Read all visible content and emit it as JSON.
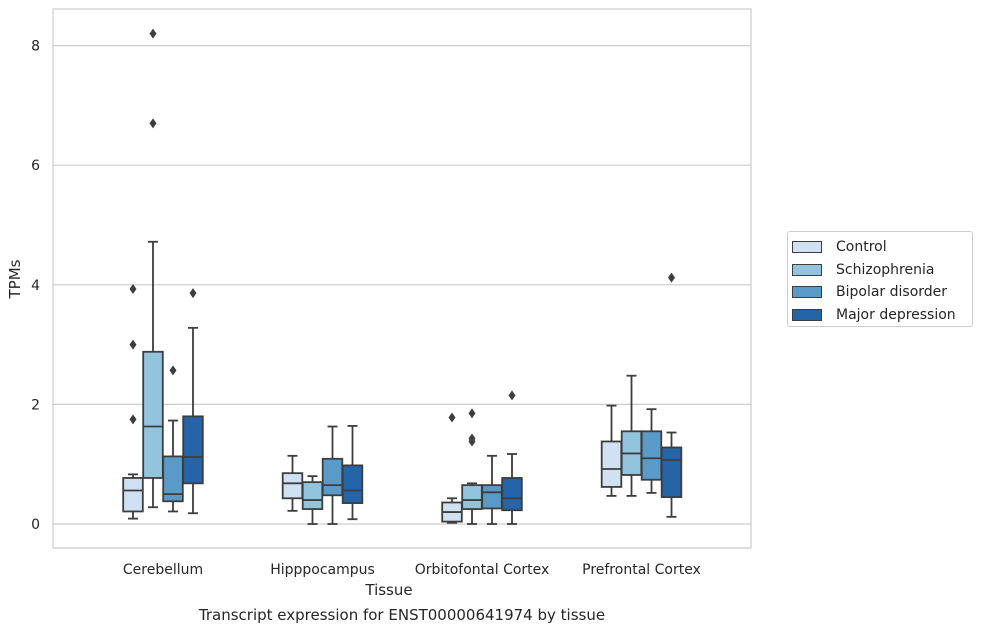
{
  "chart_data": {
    "type": "box",
    "title": "",
    "xlabel": "Tissue",
    "ylabel": "TPMs",
    "caption": "Transcript expression for ENST00000641974 by tissue",
    "ylim": [
      -0.4,
      8.6
    ],
    "yticks": [
      0,
      2,
      4,
      6,
      8
    ],
    "grid": "horizontal",
    "legend_position": "right",
    "categories": [
      "Cerebellum",
      "Hipppocampus",
      "Orbitofontal Cortex",
      "Prefrontal Cortex"
    ],
    "series": [
      {
        "name": "Control",
        "color": "#cfe1f2",
        "boxes": [
          {
            "whislo": 0.09,
            "q1": 0.21,
            "med": 0.56,
            "q3": 0.77,
            "whishi": 0.83,
            "fliers": [
              1.75,
              3.0,
              3.93
            ]
          },
          {
            "whislo": 0.22,
            "q1": 0.43,
            "med": 0.68,
            "q3": 0.85,
            "whishi": 1.14,
            "fliers": []
          },
          {
            "whislo": 0.02,
            "q1": 0.04,
            "med": 0.2,
            "q3": 0.36,
            "whishi": 0.43,
            "fliers": [
              1.78
            ]
          },
          {
            "whislo": 0.47,
            "q1": 0.62,
            "med": 0.92,
            "q3": 1.38,
            "whishi": 1.98,
            "fliers": []
          }
        ]
      },
      {
        "name": "Schizophrenia",
        "color": "#93c4de",
        "boxes": [
          {
            "whislo": 0.28,
            "q1": 0.77,
            "med": 1.63,
            "q3": 2.88,
            "whishi": 4.72,
            "fliers": [
              6.7,
              8.2
            ]
          },
          {
            "whislo": 0.0,
            "q1": 0.25,
            "med": 0.4,
            "q3": 0.7,
            "whishi": 0.8,
            "fliers": []
          },
          {
            "whislo": 0.0,
            "q1": 0.25,
            "med": 0.4,
            "q3": 0.65,
            "whishi": 0.68,
            "fliers": [
              1.38,
              1.43,
              1.85
            ]
          },
          {
            "whislo": 0.47,
            "q1": 0.82,
            "med": 1.18,
            "q3": 1.55,
            "whishi": 2.48,
            "fliers": []
          }
        ]
      },
      {
        "name": "Bipolar disorder",
        "color": "#5a9ac9",
        "boxes": [
          {
            "whislo": 0.21,
            "q1": 0.38,
            "med": 0.5,
            "q3": 1.13,
            "whishi": 1.73,
            "fliers": [
              2.57
            ]
          },
          {
            "whislo": 0.0,
            "q1": 0.48,
            "med": 0.65,
            "q3": 1.09,
            "whishi": 1.63,
            "fliers": []
          },
          {
            "whislo": 0.0,
            "q1": 0.26,
            "med": 0.53,
            "q3": 0.65,
            "whishi": 1.14,
            "fliers": []
          },
          {
            "whislo": 0.52,
            "q1": 0.74,
            "med": 1.1,
            "q3": 1.55,
            "whishi": 1.92,
            "fliers": []
          }
        ]
      },
      {
        "name": "Major depression",
        "color": "#2664a8",
        "boxes": [
          {
            "whislo": 0.18,
            "q1": 0.68,
            "med": 1.12,
            "q3": 1.8,
            "whishi": 3.28,
            "fliers": [
              3.86
            ]
          },
          {
            "whislo": 0.08,
            "q1": 0.35,
            "med": 0.56,
            "q3": 0.98,
            "whishi": 1.64,
            "fliers": []
          },
          {
            "whislo": 0.0,
            "q1": 0.23,
            "med": 0.43,
            "q3": 0.77,
            "whishi": 1.17,
            "fliers": [
              2.15
            ]
          },
          {
            "whislo": 0.12,
            "q1": 0.45,
            "med": 1.07,
            "q3": 1.28,
            "whishi": 1.53,
            "fliers": [
              4.12
            ]
          }
        ]
      }
    ]
  }
}
